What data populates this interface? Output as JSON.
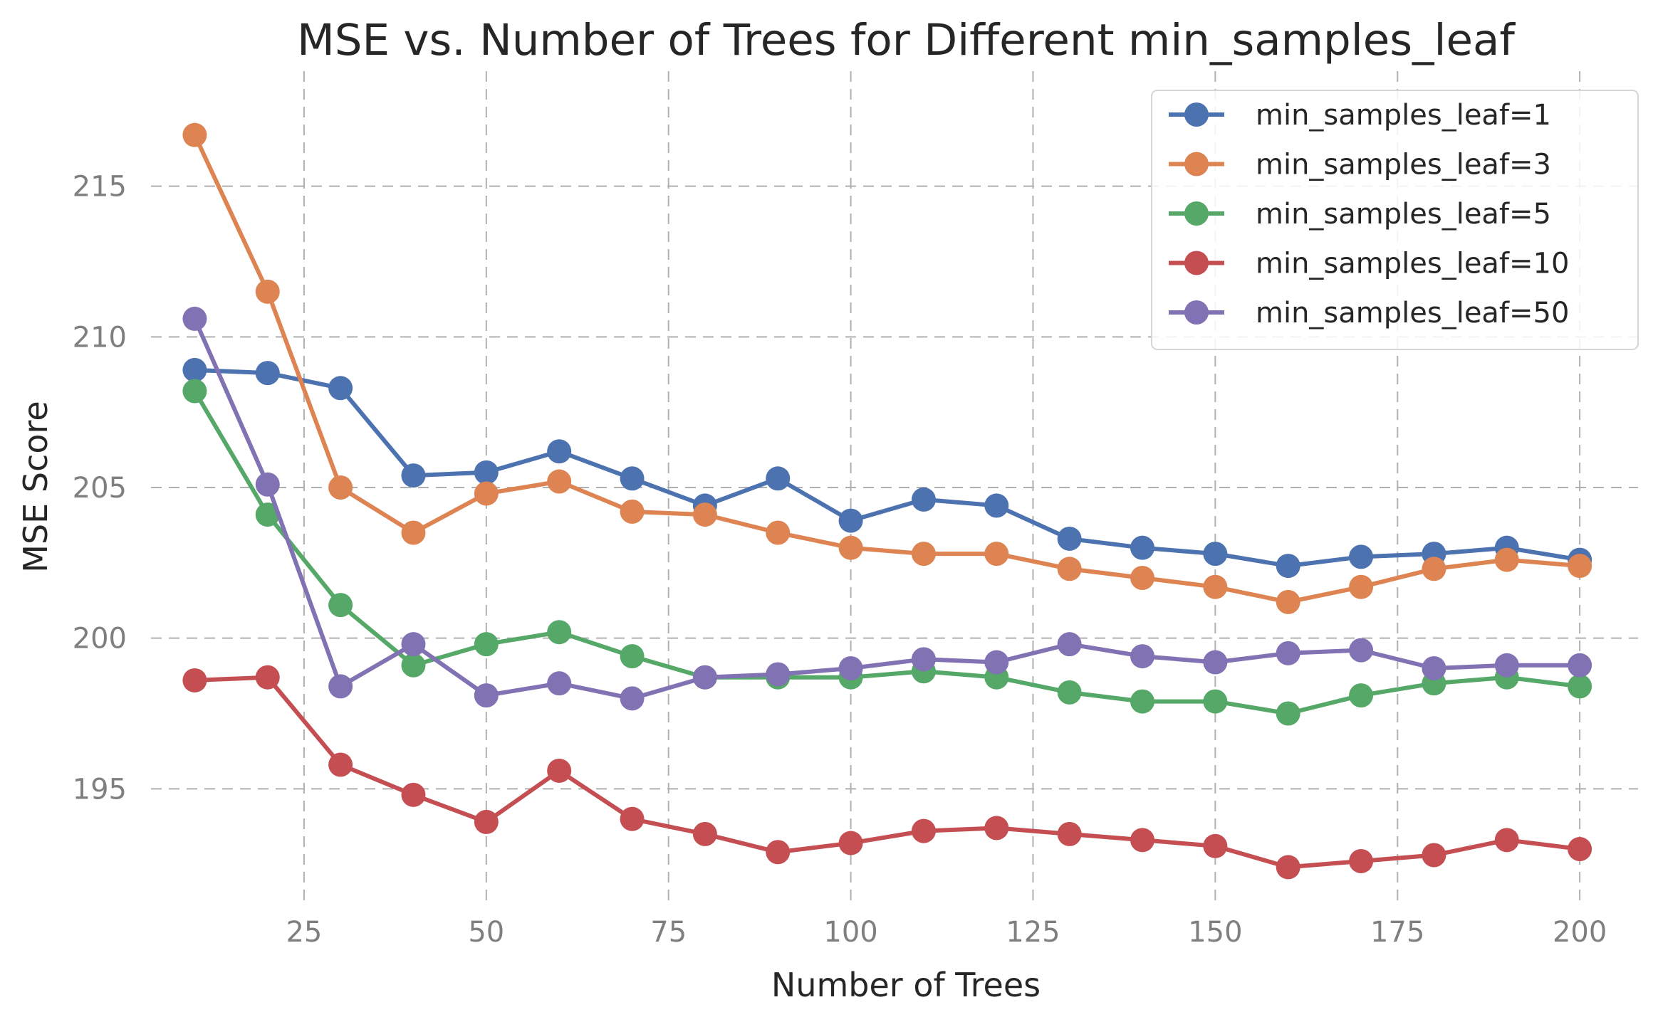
{
  "chart_data": {
    "type": "line",
    "title": "MSE vs. Number of Trees for Different min_samples_leaf",
    "xlabel": "Number of Trees",
    "ylabel": "MSE Score",
    "xlim": [
      4,
      208
    ],
    "ylim": [
      191.3,
      218.7
    ],
    "xticks": [
      25,
      50,
      75,
      100,
      125,
      150,
      175,
      200
    ],
    "yticks": [
      195,
      200,
      205,
      210,
      215
    ],
    "grid": true,
    "legend_position": "top-right",
    "x": [
      10,
      20,
      30,
      40,
      50,
      60,
      70,
      80,
      90,
      100,
      110,
      120,
      130,
      140,
      150,
      160,
      170,
      180,
      190,
      200
    ],
    "series": [
      {
        "name": "min_samples_leaf=1",
        "color": "#4c72b0",
        "values": [
          208.9,
          208.8,
          208.3,
          205.4,
          205.5,
          206.2,
          205.3,
          204.4,
          205.3,
          203.9,
          204.6,
          204.4,
          203.3,
          203.0,
          202.8,
          202.4,
          202.7,
          202.8,
          203.0,
          202.6
        ]
      },
      {
        "name": "min_samples_leaf=3",
        "color": "#dd8452",
        "values": [
          216.7,
          211.5,
          205.0,
          203.5,
          204.8,
          205.2,
          204.2,
          204.1,
          203.5,
          203.0,
          202.8,
          202.8,
          202.3,
          202.0,
          201.7,
          201.2,
          201.7,
          202.3,
          202.6,
          202.4
        ]
      },
      {
        "name": "min_samples_leaf=5",
        "color": "#55a868",
        "values": [
          208.2,
          204.1,
          201.1,
          199.1,
          199.8,
          200.2,
          199.4,
          198.7,
          198.7,
          198.7,
          198.9,
          198.7,
          198.2,
          197.9,
          197.9,
          197.5,
          198.1,
          198.5,
          198.7,
          198.4
        ]
      },
      {
        "name": "min_samples_leaf=10",
        "color": "#c44e52",
        "values": [
          198.6,
          198.7,
          195.8,
          194.8,
          193.9,
          195.6,
          194.0,
          193.5,
          192.9,
          193.2,
          193.6,
          193.7,
          193.5,
          193.3,
          193.1,
          192.4,
          192.6,
          192.8,
          193.3,
          193.0
        ]
      },
      {
        "name": "min_samples_leaf=50",
        "color": "#8172b3",
        "values": [
          210.6,
          205.1,
          198.4,
          199.8,
          198.1,
          198.5,
          198.0,
          198.7,
          198.8,
          199.0,
          199.3,
          199.2,
          199.8,
          199.4,
          199.2,
          199.5,
          199.6,
          199.0,
          199.1,
          199.1
        ]
      }
    ]
  }
}
